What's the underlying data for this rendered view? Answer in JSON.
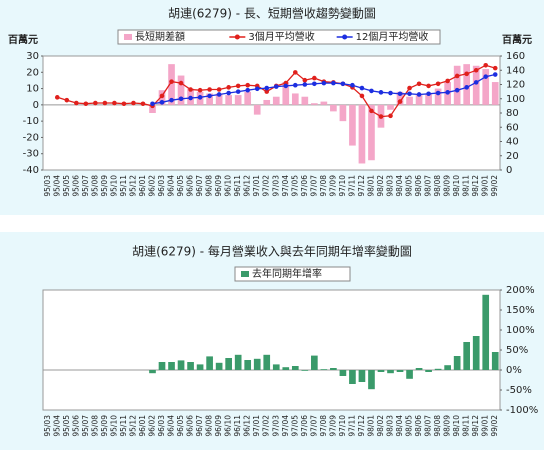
{
  "chart_data": [
    {
      "type": "combo",
      "title": "胡連(6279) - 長、短期營收趨勢變動圖",
      "y_label": "百萬元",
      "y2_label": "百萬元",
      "categories": [
        "95/03",
        "95/04",
        "95/05",
        "95/06",
        "95/07",
        "95/08",
        "95/09",
        "95/10",
        "95/11",
        "95/12",
        "96/01",
        "96/02",
        "96/03",
        "96/04",
        "96/05",
        "96/06",
        "96/07",
        "96/08",
        "96/09",
        "96/10",
        "96/11",
        "96/12",
        "97/01",
        "97/02",
        "97/03",
        "97/04",
        "97/05",
        "97/06",
        "97/07",
        "97/08",
        "97/09",
        "97/10",
        "97/11",
        "97/12",
        "98/01",
        "98/02",
        "98/03",
        "98/04",
        "98/05",
        "98/06",
        "98/07",
        "98/08",
        "98/09",
        "98/10",
        "98/11",
        "98/12",
        "99/01",
        "99/02"
      ],
      "ylim": [
        -40,
        30
      ],
      "yticks": [
        -40,
        -30,
        -20,
        -10,
        0,
        10,
        20,
        30
      ],
      "y2lim": [
        0,
        160
      ],
      "y2ticks": [
        0,
        20,
        40,
        60,
        80,
        100,
        120,
        140,
        160
      ],
      "series": [
        {
          "name": "長短期差額",
          "type": "bar",
          "axis": "y",
          "color": "#f4a6c8",
          "values": [
            null,
            null,
            null,
            null,
            null,
            null,
            null,
            null,
            null,
            null,
            null,
            -5,
            9,
            25,
            18,
            10,
            8,
            7,
            7,
            6,
            6,
            8,
            -6,
            3,
            5,
            14,
            7,
            5,
            1,
            2,
            -4,
            -10,
            -25,
            -36,
            -34,
            -14,
            -3,
            8,
            5,
            6,
            7,
            10,
            14,
            24,
            25,
            24,
            22,
            14
          ]
        },
        {
          "name": "3個月平均營收",
          "type": "line",
          "axis": "y2",
          "color": "#e0201c",
          "values": [
            null,
            102,
            98,
            94,
            93,
            94,
            94,
            94,
            93,
            94,
            93,
            90,
            104,
            124,
            122,
            113,
            112,
            113,
            113,
            116,
            118,
            119,
            118,
            110,
            118,
            122,
            137,
            126,
            129,
            124,
            123,
            121,
            116,
            104,
            83,
            75,
            76,
            96,
            115,
            121,
            118,
            121,
            125,
            132,
            135,
            140,
            147,
            143
          ]
        },
        {
          "name": "12個月平均營收",
          "type": "line",
          "axis": "y2",
          "color": "#1c2ee0",
          "values": [
            null,
            null,
            null,
            null,
            null,
            null,
            null,
            null,
            null,
            null,
            null,
            93,
            95,
            98,
            100,
            101,
            102,
            104,
            106,
            108,
            110,
            112,
            114,
            115,
            117,
            118,
            119,
            120,
            121,
            122,
            122,
            121,
            119,
            115,
            111,
            109,
            108,
            107,
            107,
            106,
            107,
            108,
            109,
            112,
            116,
            123,
            131,
            134
          ]
        }
      ]
    },
    {
      "type": "bar",
      "title": "胡連(6279) - 每月營業收入與去年同期年增率變動圖",
      "categories": [
        "95/03",
        "95/04",
        "95/05",
        "95/06",
        "95/07",
        "95/08",
        "95/09",
        "95/10",
        "95/11",
        "95/12",
        "96/01",
        "96/02",
        "96/03",
        "96/04",
        "96/05",
        "96/06",
        "96/07",
        "96/08",
        "96/09",
        "96/10",
        "96/11",
        "96/12",
        "97/01",
        "97/02",
        "97/03",
        "97/04",
        "97/05",
        "97/06",
        "97/07",
        "97/08",
        "97/09",
        "97/10",
        "97/11",
        "97/12",
        "98/01",
        "98/02",
        "98/03",
        "98/04",
        "98/05",
        "98/06",
        "98/07",
        "98/08",
        "98/09",
        "98/10",
        "98/11",
        "98/12",
        "99/01",
        "99/02"
      ],
      "y2lim": [
        -100,
        200
      ],
      "y2ticks": [
        {
          "value": -100,
          "label": "-100%"
        },
        {
          "value": -50,
          "label": "-50%"
        },
        {
          "value": 0,
          "label": "0%"
        },
        {
          "value": 50,
          "label": "50%"
        },
        {
          "value": 100,
          "label": "100%"
        },
        {
          "value": 150,
          "label": "150%"
        },
        {
          "value": 200,
          "label": "200%"
        }
      ],
      "series": [
        {
          "name": "去年同期年增率",
          "type": "bar",
          "axis": "y2",
          "color": "#3a9a6a",
          "values": [
            null,
            null,
            null,
            null,
            null,
            null,
            null,
            null,
            null,
            null,
            null,
            -8,
            20,
            20,
            24,
            20,
            14,
            34,
            18,
            30,
            38,
            25,
            28,
            38,
            14,
            7,
            10,
            -2,
            36,
            2,
            5,
            -15,
            -35,
            -30,
            -48,
            -5,
            -8,
            -5,
            -22,
            5,
            -5,
            3,
            12,
            35,
            70,
            85,
            188,
            45
          ]
        }
      ]
    }
  ]
}
